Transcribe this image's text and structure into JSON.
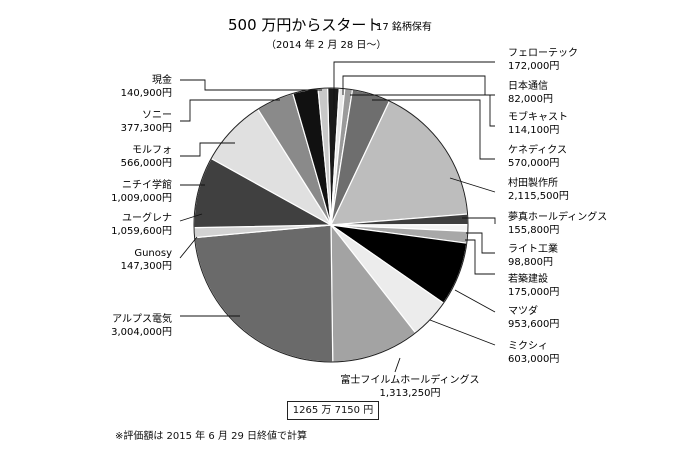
{
  "chart_data": {
    "type": "pie",
    "title": "500 万円からスタート",
    "title_suffix": "17 銘柄保有",
    "subtitle": "（2014 年 2 月 28 日〜）",
    "total_label": "1265 万 7150 円",
    "note": "※評価額は 2015 年 6 月 29 日終値で計算",
    "slices": [
      {
        "name": "フェローテック",
        "value_label": "172,000円",
        "value": 172000,
        "color": "#1a1a1a"
      },
      {
        "name": "日本通信",
        "value_label": "82,000円",
        "value": 82000,
        "color": "#e8e8e8"
      },
      {
        "name": "モブキャスト",
        "value_label": "114,100円",
        "value": 114100,
        "color": "#9a9a9a"
      },
      {
        "name": "ケネディクス",
        "value_label": "570,000円",
        "value": 570000,
        "color": "#6e6e6e"
      },
      {
        "name": "村田製作所",
        "value_label": "2,115,500円",
        "value": 2115500,
        "color": "#bdbdbd"
      },
      {
        "name": "夢真ホールディングス",
        "value_label": "155,800円",
        "value": 155800,
        "color": "#3e3e3e"
      },
      {
        "name": "ライト工業",
        "value_label": "98,800円",
        "value": 98800,
        "color": "#f2f2f2"
      },
      {
        "name": "若築建設",
        "value_label": "175,000円",
        "value": 175000,
        "color": "#a8a8a8"
      },
      {
        "name": "マツダ",
        "value_label": "953,600円",
        "value": 953600,
        "color": "#000000"
      },
      {
        "name": "ミクシィ",
        "value_label": "603,000円",
        "value": 603000,
        "color": "#ececec"
      },
      {
        "name": "富士フイルムホールディングス",
        "value_label": "1,313,250円",
        "value": 1313250,
        "color": "#a3a3a3"
      },
      {
        "name": "アルプス電気",
        "value_label": "3,004,000円",
        "value": 3004000,
        "color": "#6a6a6a"
      },
      {
        "name": "Gunosy",
        "value_label": "147,300円",
        "value": 147300,
        "color": "#d2d2d2"
      },
      {
        "name": "ユーグレナ",
        "value_label": "1,059,600円",
        "value": 1059600,
        "color": "#404040"
      },
      {
        "name": "ニチイ学館",
        "value_label": "1,009,000円",
        "value": 1009000,
        "color": "#e0e0e0"
      },
      {
        "name": "モルフォ",
        "value_label": "566,000円",
        "value": 566000,
        "color": "#8a8a8a"
      },
      {
        "name": "ソニー",
        "value_label": "377,300円",
        "value": 377300,
        "color": "#111111"
      },
      {
        "name": "現金",
        "value_label": "140,900円",
        "value": 140900,
        "color": "#c8c8c8"
      }
    ]
  }
}
